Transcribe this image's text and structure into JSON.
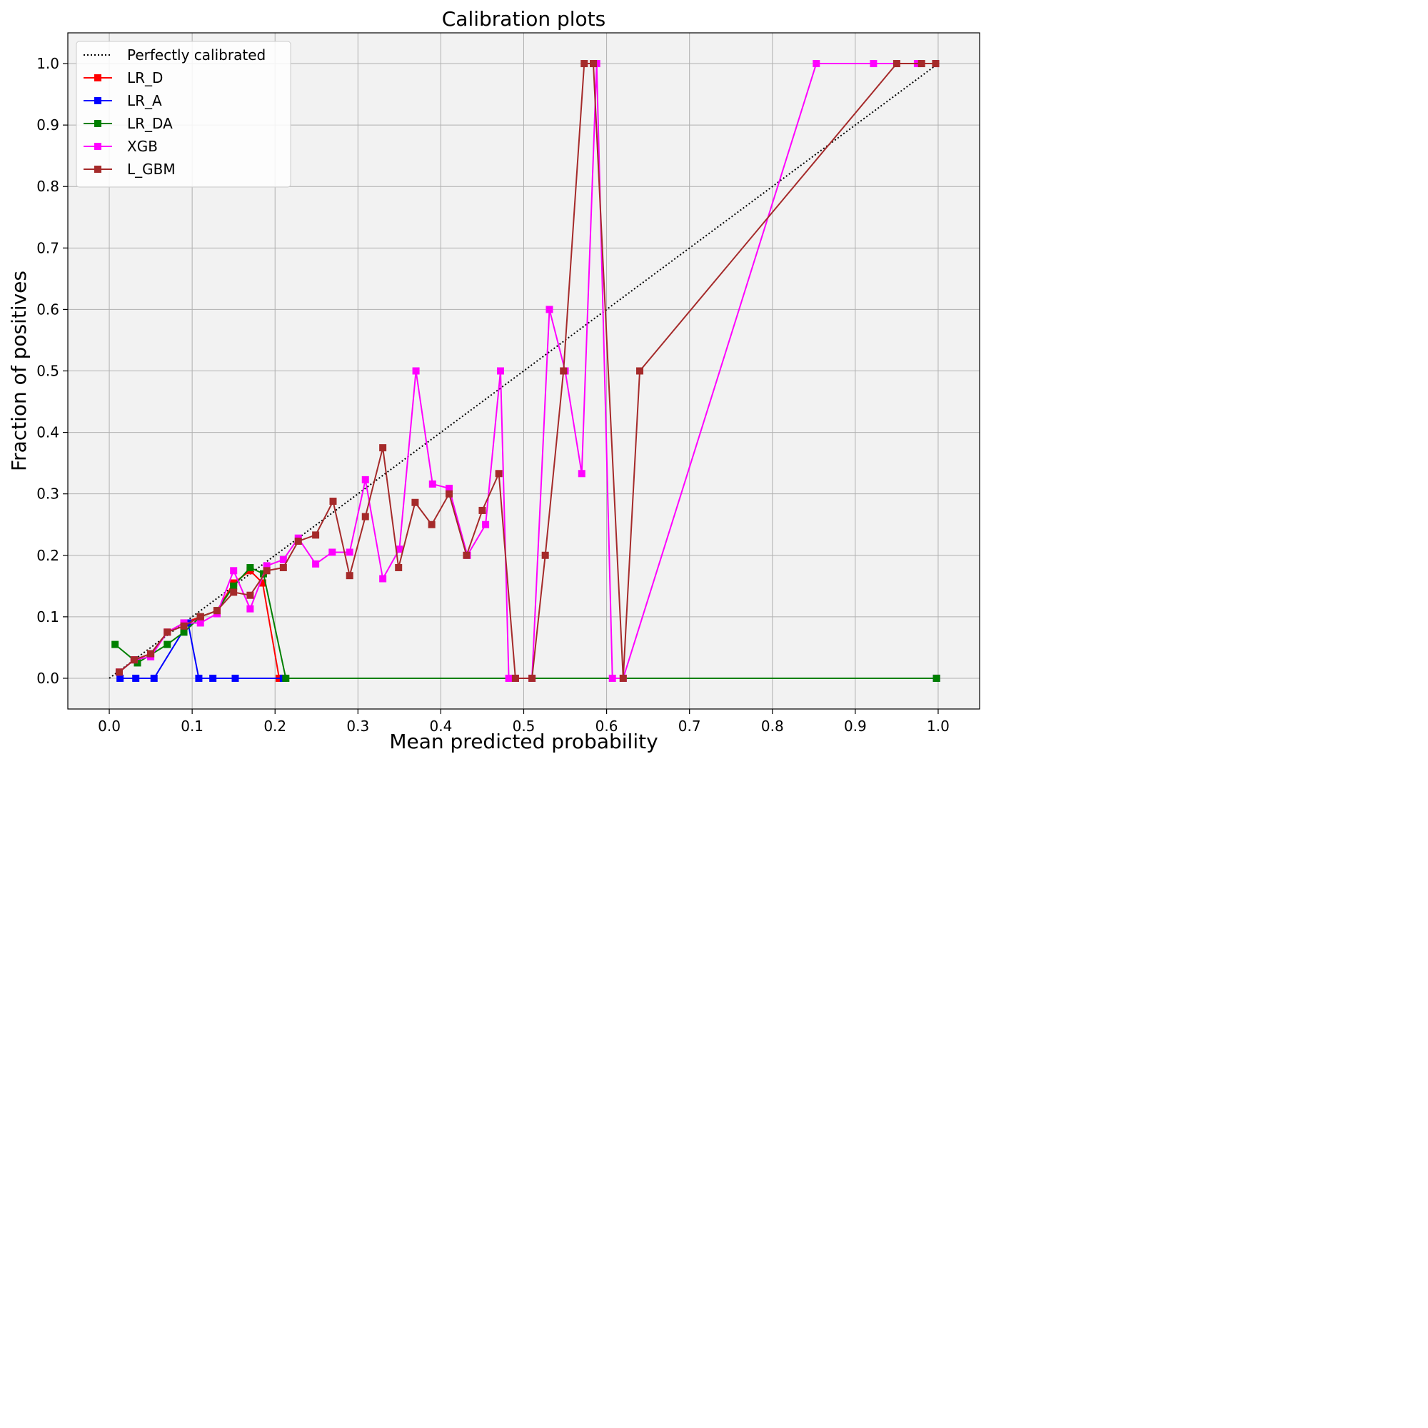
{
  "chart_data": {
    "type": "line",
    "title": "Calibration plots",
    "xlabel": "Mean predicted probability",
    "ylabel": "Fraction of positives",
    "xlim": [
      -0.05,
      1.05
    ],
    "ylim": [
      -0.05,
      1.05
    ],
    "xticks": [
      0.0,
      0.1,
      0.2,
      0.3,
      0.4,
      0.5,
      0.6,
      0.7,
      0.8,
      0.9,
      1.0
    ],
    "yticks": [
      0.0,
      0.1,
      0.2,
      0.3,
      0.4,
      0.5,
      0.6,
      0.7,
      0.8,
      0.9,
      1.0
    ],
    "xtick_labels": [
      "0.0",
      "0.1",
      "0.2",
      "0.3",
      "0.4",
      "0.5",
      "0.6",
      "0.7",
      "0.8",
      "0.9",
      "1.0"
    ],
    "ytick_labels": [
      "0.0",
      "0.1",
      "0.2",
      "0.3",
      "0.4",
      "0.5",
      "0.6",
      "0.7",
      "0.8",
      "0.9",
      "1.0"
    ],
    "grid": true,
    "legend_position": "top-left",
    "background_color": "#f2f2f2",
    "reference": {
      "name": "Perfectly calibrated",
      "x": [
        0,
        1
      ],
      "y": [
        0,
        1
      ],
      "color": "#000000",
      "style": "dotted"
    },
    "series": [
      {
        "name": "LR_D",
        "color": "#ff0000",
        "x": [
          0.012,
          0.03,
          0.05,
          0.07,
          0.09,
          0.11,
          0.13,
          0.15,
          0.17,
          0.185,
          0.205,
          0.21,
          0.998
        ],
        "y": [
          0.01,
          0.03,
          0.04,
          0.075,
          0.09,
          0.1,
          0.11,
          0.155,
          0.175,
          0.155,
          0.0,
          0.0,
          0.0
        ]
      },
      {
        "name": "LR_A",
        "color": "#0000ff",
        "x": [
          0.013,
          0.032,
          0.054,
          0.095,
          0.108,
          0.125,
          0.152,
          0.21,
          0.998
        ],
        "y": [
          0.0,
          0.0,
          0.0,
          0.09,
          0.0,
          0.0,
          0.0,
          0.0,
          0.0
        ]
      },
      {
        "name": "LR_DA",
        "color": "#008000",
        "x": [
          0.007,
          0.034,
          0.07,
          0.09,
          0.11,
          0.13,
          0.15,
          0.17,
          0.186,
          0.213,
          0.998
        ],
        "y": [
          0.055,
          0.025,
          0.055,
          0.075,
          0.1,
          0.11,
          0.15,
          0.18,
          0.17,
          0.0,
          0.0
        ]
      },
      {
        "name": "XGB",
        "color": "#ff00ff",
        "x": [
          0.012,
          0.03,
          0.05,
          0.07,
          0.09,
          0.11,
          0.13,
          0.15,
          0.17,
          0.19,
          0.21,
          0.228,
          0.249,
          0.269,
          0.29,
          0.309,
          0.33,
          0.35,
          0.37,
          0.39,
          0.41,
          0.432,
          0.454,
          0.472,
          0.482,
          0.49,
          0.51,
          0.531,
          0.55,
          0.57,
          0.588,
          0.607,
          0.62,
          0.853,
          0.922,
          0.975,
          0.997
        ],
        "y": [
          0.01,
          0.03,
          0.035,
          0.075,
          0.09,
          0.09,
          0.105,
          0.175,
          0.113,
          0.183,
          0.193,
          0.228,
          0.186,
          0.205,
          0.205,
          0.323,
          0.162,
          0.21,
          0.5,
          0.316,
          0.309,
          0.2,
          0.25,
          0.5,
          0.0,
          0.0,
          0.0,
          0.6,
          0.5,
          0.333,
          1.0,
          0.0,
          0.0,
          1.0,
          1.0,
          1.0,
          1.0
        ]
      },
      {
        "name": "L_GBM",
        "color": "#a52a2a",
        "x": [
          0.012,
          0.03,
          0.05,
          0.07,
          0.09,
          0.11,
          0.13,
          0.15,
          0.17,
          0.19,
          0.21,
          0.228,
          0.249,
          0.27,
          0.29,
          0.309,
          0.33,
          0.349,
          0.369,
          0.389,
          0.41,
          0.431,
          0.45,
          0.47,
          0.49,
          0.51,
          0.526,
          0.548,
          0.573,
          0.584,
          0.62,
          0.64,
          0.95,
          0.98,
          0.997
        ],
        "y": [
          0.01,
          0.03,
          0.04,
          0.075,
          0.085,
          0.1,
          0.11,
          0.14,
          0.135,
          0.175,
          0.18,
          0.223,
          0.233,
          0.288,
          0.167,
          0.263,
          0.375,
          0.18,
          0.286,
          0.25,
          0.3,
          0.2,
          0.273,
          0.333,
          0.0,
          0.0,
          0.2,
          0.5,
          1.0,
          1.0,
          0.0,
          0.5,
          1.0,
          1.0,
          1.0
        ]
      }
    ]
  }
}
